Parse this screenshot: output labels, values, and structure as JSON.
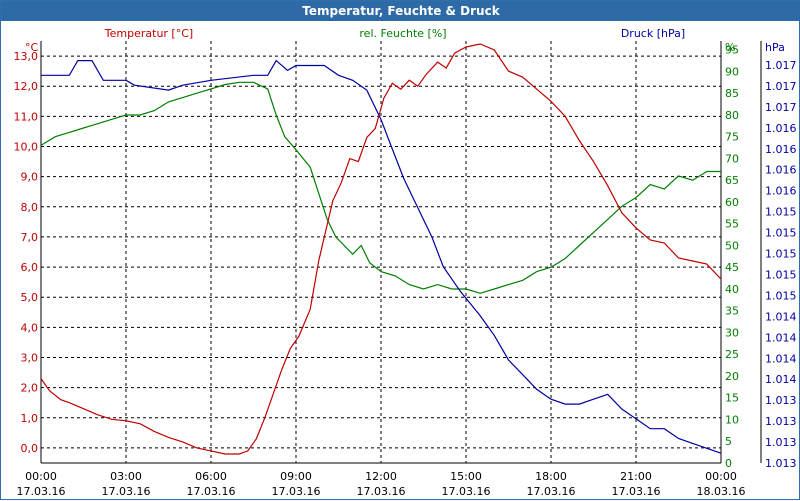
{
  "window": {
    "title": "Temperatur, Feuchte & Druck"
  },
  "colors": {
    "temperature": "#c00000",
    "humidity": "#007f00",
    "pressure": "#00009f",
    "titlebar": "#2d6aa6"
  },
  "chart_data": {
    "type": "line",
    "title": "Temperatur, Feuchte & Druck",
    "series": [
      {
        "name": "Temperatur [°C]",
        "unit_label": "°C",
        "axis": "left",
        "color": "#c00000",
        "ylim": [
          -0.5,
          13.5
        ],
        "ticks": [
          "0,0",
          "1,0",
          "2,0",
          "3,0",
          "4,0",
          "5,0",
          "6,0",
          "7,0",
          "8,0",
          "9,0",
          "10,0",
          "11,0",
          "12,0",
          "13,0"
        ],
        "values": [
          [
            0,
            2.3
          ],
          [
            0.3,
            1.9
          ],
          [
            0.7,
            1.6
          ],
          [
            1.0,
            1.5
          ],
          [
            1.5,
            1.3
          ],
          [
            2.0,
            1.1
          ],
          [
            2.5,
            0.95
          ],
          [
            3.0,
            0.9
          ],
          [
            3.5,
            0.8
          ],
          [
            4.0,
            0.55
          ],
          [
            4.5,
            0.35
          ],
          [
            5.0,
            0.2
          ],
          [
            5.5,
            0.0
          ],
          [
            6.0,
            -0.1
          ],
          [
            6.5,
            -0.2
          ],
          [
            7.0,
            -0.2
          ],
          [
            7.3,
            -0.1
          ],
          [
            7.6,
            0.3
          ],
          [
            7.9,
            1.0
          ],
          [
            8.2,
            1.8
          ],
          [
            8.5,
            2.6
          ],
          [
            8.8,
            3.3
          ],
          [
            9.1,
            3.7
          ],
          [
            9.5,
            4.6
          ],
          [
            9.8,
            6.2
          ],
          [
            10.0,
            7.0
          ],
          [
            10.3,
            8.2
          ],
          [
            10.6,
            8.8
          ],
          [
            10.9,
            9.6
          ],
          [
            11.2,
            9.5
          ],
          [
            11.5,
            10.3
          ],
          [
            11.8,
            10.6
          ],
          [
            12.1,
            11.6
          ],
          [
            12.4,
            12.1
          ],
          [
            12.7,
            11.9
          ],
          [
            13.0,
            12.2
          ],
          [
            13.3,
            12.0
          ],
          [
            13.6,
            12.4
          ],
          [
            14.0,
            12.8
          ],
          [
            14.3,
            12.6
          ],
          [
            14.6,
            13.1
          ],
          [
            15.0,
            13.3
          ],
          [
            15.5,
            13.4
          ],
          [
            16.0,
            13.2
          ],
          [
            16.5,
            12.5
          ],
          [
            17.0,
            12.3
          ],
          [
            17.5,
            11.9
          ],
          [
            18.0,
            11.5
          ],
          [
            18.5,
            11.0
          ],
          [
            19.0,
            10.2
          ],
          [
            19.5,
            9.5
          ],
          [
            20.0,
            8.7
          ],
          [
            20.5,
            7.8
          ],
          [
            21.0,
            7.3
          ],
          [
            21.5,
            6.9
          ],
          [
            22.0,
            6.8
          ],
          [
            22.5,
            6.3
          ],
          [
            23.0,
            6.2
          ],
          [
            23.5,
            6.1
          ],
          [
            24.0,
            5.6
          ]
        ]
      },
      {
        "name": "rel. Feuchte [%]",
        "unit_label": "%",
        "axis": "right",
        "color": "#007f00",
        "ylim": [
          0,
          97
        ],
        "ticks": [
          "0",
          "5",
          "10",
          "15",
          "20",
          "25",
          "30",
          "35",
          "40",
          "45",
          "50",
          "55",
          "60",
          "65",
          "70",
          "75",
          "80",
          "85",
          "90",
          "95"
        ],
        "values": [
          [
            0,
            73
          ],
          [
            0.5,
            75
          ],
          [
            1.0,
            76
          ],
          [
            1.5,
            77
          ],
          [
            2.0,
            78
          ],
          [
            2.5,
            79
          ],
          [
            3.0,
            80
          ],
          [
            3.5,
            80
          ],
          [
            4.0,
            81
          ],
          [
            4.5,
            83
          ],
          [
            5.0,
            84
          ],
          [
            5.5,
            85
          ],
          [
            6.0,
            86
          ],
          [
            6.5,
            87
          ],
          [
            7.0,
            87.5
          ],
          [
            7.5,
            87.5
          ],
          [
            8.0,
            86
          ],
          [
            8.3,
            80
          ],
          [
            8.6,
            75
          ],
          [
            9.0,
            72
          ],
          [
            9.5,
            68
          ],
          [
            9.8,
            62
          ],
          [
            10.1,
            56
          ],
          [
            10.4,
            52
          ],
          [
            10.7,
            50
          ],
          [
            11.0,
            48
          ],
          [
            11.3,
            50
          ],
          [
            11.6,
            46
          ],
          [
            12.0,
            44
          ],
          [
            12.5,
            43
          ],
          [
            13.0,
            41
          ],
          [
            13.5,
            40
          ],
          [
            14.0,
            41
          ],
          [
            14.5,
            40
          ],
          [
            15.0,
            40
          ],
          [
            15.5,
            39
          ],
          [
            16.0,
            40
          ],
          [
            16.5,
            41
          ],
          [
            17.0,
            42
          ],
          [
            17.5,
            44
          ],
          [
            18.0,
            45
          ],
          [
            18.5,
            47
          ],
          [
            19.0,
            50
          ],
          [
            19.5,
            53
          ],
          [
            20.0,
            56
          ],
          [
            20.5,
            59
          ],
          [
            21.0,
            61
          ],
          [
            21.5,
            64
          ],
          [
            22.0,
            63
          ],
          [
            22.5,
            66
          ],
          [
            23.0,
            65
          ],
          [
            23.5,
            67
          ],
          [
            24.0,
            67
          ]
        ]
      },
      {
        "name": "Druck [hPa]",
        "unit_label": "hPa",
        "axis": "right2",
        "color": "#00009f",
        "ylim": [
          1013.0,
          1017.3
        ],
        "ticks": [
          "1.013",
          "1.013",
          "1.013",
          "1.013",
          "1.014",
          "1.014",
          "1.014",
          "1.014",
          "1.015",
          "1.015",
          "1.015",
          "1.015",
          "1.015",
          "1.016",
          "1.016",
          "1.016",
          "1.016",
          "1.017",
          "1.017",
          "1.017"
        ],
        "values": [
          [
            0,
            1016.95
          ],
          [
            1.0,
            1016.95
          ],
          [
            1.3,
            1017.1
          ],
          [
            1.8,
            1017.1
          ],
          [
            2.2,
            1016.9
          ],
          [
            3.0,
            1016.9
          ],
          [
            3.3,
            1016.85
          ],
          [
            4.5,
            1016.8
          ],
          [
            5.0,
            1016.85
          ],
          [
            6.0,
            1016.9
          ],
          [
            7.5,
            1016.95
          ],
          [
            8.0,
            1016.95
          ],
          [
            8.3,
            1017.1
          ],
          [
            8.7,
            1017.0
          ],
          [
            9.0,
            1017.05
          ],
          [
            9.3,
            1017.05
          ],
          [
            10.0,
            1017.05
          ],
          [
            10.5,
            1016.95
          ],
          [
            11.0,
            1016.9
          ],
          [
            11.5,
            1016.8
          ],
          [
            12.0,
            1016.5
          ],
          [
            12.4,
            1016.2
          ],
          [
            12.8,
            1015.9
          ],
          [
            13.3,
            1015.6
          ],
          [
            13.8,
            1015.3
          ],
          [
            14.2,
            1015.0
          ],
          [
            14.8,
            1014.75
          ],
          [
            15.5,
            1014.5
          ],
          [
            16.0,
            1014.3
          ],
          [
            16.5,
            1014.05
          ],
          [
            17.0,
            1013.9
          ],
          [
            17.5,
            1013.75
          ],
          [
            18.0,
            1013.65
          ],
          [
            18.5,
            1013.6
          ],
          [
            19.0,
            1013.6
          ],
          [
            19.5,
            1013.65
          ],
          [
            20.0,
            1013.7
          ],
          [
            20.5,
            1013.55
          ],
          [
            21.0,
            1013.45
          ],
          [
            21.5,
            1013.35
          ],
          [
            22.0,
            1013.35
          ],
          [
            22.5,
            1013.25
          ],
          [
            23.0,
            1013.2
          ],
          [
            23.5,
            1013.15
          ],
          [
            24.0,
            1013.1
          ]
        ]
      }
    ],
    "x_ticks": [
      {
        "time": "00:00",
        "date": "17.03.16"
      },
      {
        "time": "03:00",
        "date": "17.03.16"
      },
      {
        "time": "06:00",
        "date": "17.03.16"
      },
      {
        "time": "09:00",
        "date": "17.03.16"
      },
      {
        "time": "12:00",
        "date": "17.03.16"
      },
      {
        "time": "15:00",
        "date": "17.03.16"
      },
      {
        "time": "18:00",
        "date": "17.03.16"
      },
      {
        "time": "21:00",
        "date": "17.03.16"
      },
      {
        "time": "00:00",
        "date": "18.03.16"
      }
    ],
    "xlim": [
      0,
      24
    ],
    "grid": true,
    "legend": "top"
  }
}
